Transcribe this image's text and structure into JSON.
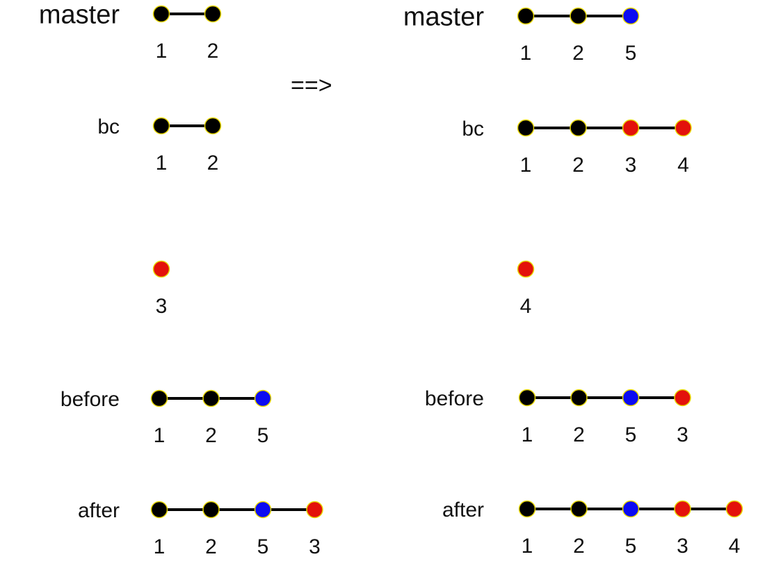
{
  "arrow_text": "==>",
  "colors": {
    "commit_black": "#000000",
    "commit_blue": "#0b0bf2",
    "commit_red": "#e3120b",
    "commit_outline": "#e8d800",
    "line": "#000000"
  },
  "panels": {
    "left": {
      "master": {
        "label": "master",
        "commits": [
          {
            "id": "1",
            "color": "black"
          },
          {
            "id": "2",
            "color": "black"
          }
        ]
      },
      "bc": {
        "label": "bc",
        "commits": [
          {
            "id": "1",
            "color": "black"
          },
          {
            "id": "2",
            "color": "black"
          }
        ]
      },
      "floating": {
        "label": "",
        "commits": [
          {
            "id": "3",
            "color": "red"
          }
        ]
      },
      "before": {
        "label": "before",
        "commits": [
          {
            "id": "1",
            "color": "black"
          },
          {
            "id": "2",
            "color": "black"
          },
          {
            "id": "5",
            "color": "blue"
          }
        ]
      },
      "after": {
        "label": "after",
        "commits": [
          {
            "id": "1",
            "color": "black"
          },
          {
            "id": "2",
            "color": "black"
          },
          {
            "id": "5",
            "color": "blue"
          },
          {
            "id": "3",
            "color": "red"
          }
        ]
      }
    },
    "right": {
      "master": {
        "label": "master",
        "commits": [
          {
            "id": "1",
            "color": "black"
          },
          {
            "id": "2",
            "color": "black"
          },
          {
            "id": "5",
            "color": "blue"
          }
        ]
      },
      "bc": {
        "label": "bc",
        "commits": [
          {
            "id": "1",
            "color": "black"
          },
          {
            "id": "2",
            "color": "black"
          },
          {
            "id": "3",
            "color": "red"
          },
          {
            "id": "4",
            "color": "red"
          }
        ]
      },
      "floating": {
        "label": "",
        "commits": [
          {
            "id": "4",
            "color": "red"
          }
        ]
      },
      "before": {
        "label": "before",
        "commits": [
          {
            "id": "1",
            "color": "black"
          },
          {
            "id": "2",
            "color": "black"
          },
          {
            "id": "5",
            "color": "blue"
          },
          {
            "id": "3",
            "color": "red"
          }
        ]
      },
      "after": {
        "label": "after",
        "commits": [
          {
            "id": "1",
            "color": "black"
          },
          {
            "id": "2",
            "color": "black"
          },
          {
            "id": "5",
            "color": "blue"
          },
          {
            "id": "3",
            "color": "red"
          },
          {
            "id": "4",
            "color": "red"
          }
        ]
      }
    }
  }
}
